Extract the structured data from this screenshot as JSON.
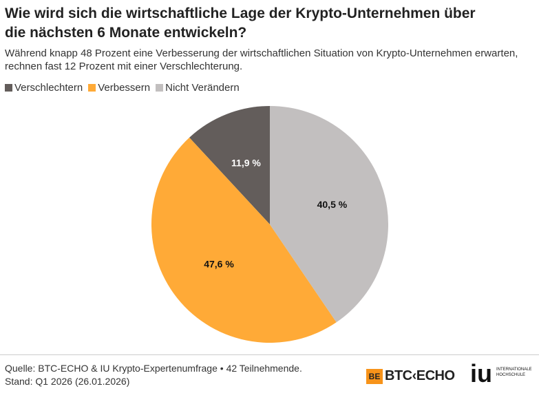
{
  "chart_data": {
    "type": "pie",
    "title": "Wie wird sich die wirtschaftliche Lage der Krypto-Unternehmen über die nächsten 6 Monate entwickeln?",
    "subtitle": "Während knapp 48 Prozent eine Verbesserung der wirtschaftlichen Situation von Krypto-Unternehmen erwarten, rechnen fast 12 Prozent mit einer Verschlechterung.",
    "categories": [
      "Verschlechtern",
      "Verbessern",
      "Nicht Verändern"
    ],
    "values": [
      11.9,
      47.6,
      40.5
    ],
    "value_labels": [
      "11,9 %",
      "47,6 %",
      "40,5 %"
    ],
    "colors": [
      "#635d5b",
      "#ffaa37",
      "#c2bfbf"
    ]
  },
  "footer": {
    "source": "Quelle: BTC-ECHO & IU Krypto-Expertenumfrage • 42 Teilnehmende.",
    "date": "Stand: Q1 2026 (26.01.2026)",
    "logo_btc": "BTC‹ECHO",
    "logo_iu": "iu",
    "logo_iu_sub": "INTERNATIONALE HOCHSCHULE"
  }
}
